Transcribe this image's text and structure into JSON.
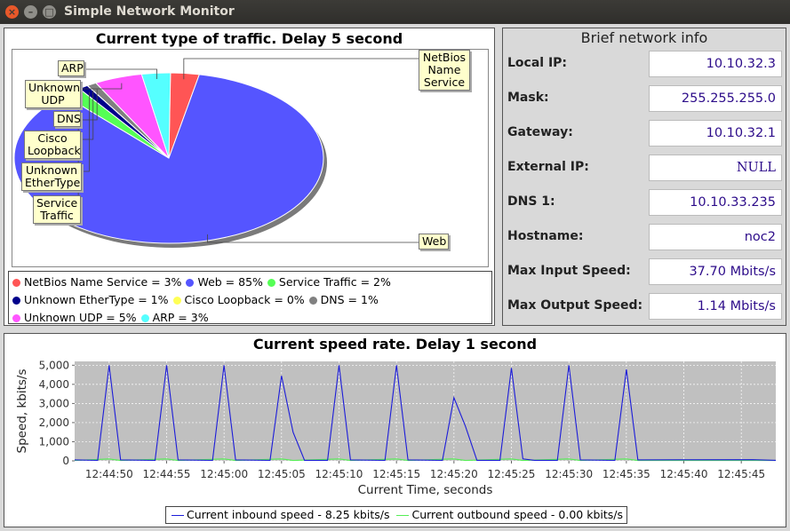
{
  "window": {
    "title": "Simple Network Monitor"
  },
  "traffic_panel": {
    "title": "Current type of traffic. Delay 5 second",
    "slices": [
      {
        "name": "netbios",
        "label": "NetBios Name Service",
        "label_lines": [
          "NetBios",
          "Name",
          "Service"
        ],
        "value": 3,
        "color": "#ff5555"
      },
      {
        "name": "web",
        "label": "Web",
        "label_lines": [
          "Web"
        ],
        "value": 85,
        "color": "#5555ff"
      },
      {
        "name": "service-traffic",
        "label": "Service Traffic",
        "label_lines": [
          "Service",
          "Traffic"
        ],
        "value": 2,
        "color": "#55ff55"
      },
      {
        "name": "unknown-ethertype",
        "label": "Unknown EtherType",
        "label_lines": [
          "Unknown",
          "EtherType"
        ],
        "value": 1,
        "color": "#00008b"
      },
      {
        "name": "cisco-loopback",
        "label": "Cisco Loopback",
        "label_lines": [
          "Cisco",
          "Loopback"
        ],
        "value": 0,
        "color": "#ffff55"
      },
      {
        "name": "dns",
        "label": "DNS",
        "label_lines": [
          "DNS"
        ],
        "value": 1,
        "color": "#808080"
      },
      {
        "name": "unknown-udp",
        "label": "Unknown UDP",
        "label_lines": [
          "Unknown",
          "UDP"
        ],
        "value": 5,
        "color": "#ff55ff"
      },
      {
        "name": "arp",
        "label": "ARP",
        "label_lines": [
          "ARP"
        ],
        "value": 3,
        "color": "#55ffff"
      }
    ],
    "legend": [
      "NetBios Name Service = 3%",
      "Web = 85%",
      "Service Traffic = 2%",
      "Unknown EtherType = 1%",
      "Cisco Loopback = 0%",
      "DNS = 1%",
      "Unknown UDP = 5%",
      "ARP = 3%"
    ]
  },
  "info_panel": {
    "title": "Brief network info",
    "rows": [
      {
        "label": "Local IP:",
        "value": "10.10.32.3"
      },
      {
        "label": "Mask:",
        "value": "255.255.255.0"
      },
      {
        "label": "Gateway:",
        "value": "10.10.32.1"
      },
      {
        "label": "External IP:",
        "value": "NULL"
      },
      {
        "label": "DNS 1:",
        "value": "10.10.33.235"
      },
      {
        "label": "Hostname:",
        "value": "noc2"
      },
      {
        "label": "Max Input Speed:",
        "value": "37.70 Mbits/s"
      },
      {
        "label": "Max Output Speed:",
        "value": "1.14 Mbits/s"
      }
    ]
  },
  "speed_panel": {
    "title": "Current speed rate. Delay 1 second",
    "chart_data": {
      "type": "line",
      "title": "Current speed rate. Delay 1 second",
      "xlabel": "Current Time, seconds",
      "ylabel": "Speed, kbits/s",
      "ylim": [
        0,
        5200
      ],
      "yticks": [
        0,
        1000,
        2000,
        3000,
        4000,
        5000
      ],
      "ytick_labels": [
        "0",
        "1,000",
        "2,000",
        "3,000",
        "4,000",
        "5,000"
      ],
      "xticks": [
        "12:44:50",
        "12:44:55",
        "12:45:00",
        "12:45:05",
        "12:45:10",
        "12:45:15",
        "12:45:20",
        "12:45:25",
        "12:45:30",
        "12:45:35",
        "12:45:40",
        "12:45:45"
      ],
      "x_start": "12:44:47",
      "x_end": "12:45:48",
      "grid": true,
      "legend_position": "bottom",
      "series": [
        {
          "name": "Current inbound speed - 8.25 kbits/s",
          "color": "#1c1cd9",
          "points": [
            [
              "12:44:47",
              50
            ],
            [
              "12:44:49",
              30
            ],
            [
              "12:44:50",
              5000
            ],
            [
              "12:44:51",
              50
            ],
            [
              "12:44:54",
              30
            ],
            [
              "12:44:55",
              5000
            ],
            [
              "12:44:56",
              50
            ],
            [
              "12:44:59",
              30
            ],
            [
              "12:45:00",
              5000
            ],
            [
              "12:45:01",
              50
            ],
            [
              "12:45:04",
              30
            ],
            [
              "12:45:05",
              4450
            ],
            [
              "12:45:06",
              1500
            ],
            [
              "12:45:07",
              30
            ],
            [
              "12:45:09",
              30
            ],
            [
              "12:45:10",
              5000
            ],
            [
              "12:45:11",
              50
            ],
            [
              "12:45:14",
              30
            ],
            [
              "12:45:15",
              5000
            ],
            [
              "12:45:16",
              50
            ],
            [
              "12:45:19",
              30
            ],
            [
              "12:45:20",
              3300
            ],
            [
              "12:45:21",
              1800
            ],
            [
              "12:45:22",
              30
            ],
            [
              "12:45:24",
              30
            ],
            [
              "12:45:25",
              4850
            ],
            [
              "12:45:26",
              100
            ],
            [
              "12:45:27",
              30
            ],
            [
              "12:45:29",
              30
            ],
            [
              "12:45:30",
              5000
            ],
            [
              "12:45:31",
              50
            ],
            [
              "12:45:34",
              30
            ],
            [
              "12:45:35",
              4780
            ],
            [
              "12:45:36",
              50
            ],
            [
              "12:45:46",
              60
            ],
            [
              "12:45:48",
              30
            ]
          ]
        },
        {
          "name": "Current outbound speed - 0.00 kbits/s",
          "color": "#55ee55",
          "points": [
            [
              "12:44:47",
              20
            ],
            [
              "12:44:50",
              100
            ],
            [
              "12:44:51",
              20
            ],
            [
              "12:44:55",
              100
            ],
            [
              "12:44:56",
              20
            ],
            [
              "12:45:00",
              100
            ],
            [
              "12:45:01",
              20
            ],
            [
              "12:45:05",
              100
            ],
            [
              "12:45:06",
              20
            ],
            [
              "12:45:10",
              100
            ],
            [
              "12:45:11",
              20
            ],
            [
              "12:45:15",
              100
            ],
            [
              "12:45:16",
              20
            ],
            [
              "12:45:20",
              100
            ],
            [
              "12:45:21",
              20
            ],
            [
              "12:45:25",
              100
            ],
            [
              "12:45:26",
              20
            ],
            [
              "12:45:30",
              100
            ],
            [
              "12:45:31",
              20
            ],
            [
              "12:45:35",
              100
            ],
            [
              "12:45:36",
              20
            ],
            [
              "12:45:48",
              20
            ]
          ]
        }
      ]
    }
  }
}
